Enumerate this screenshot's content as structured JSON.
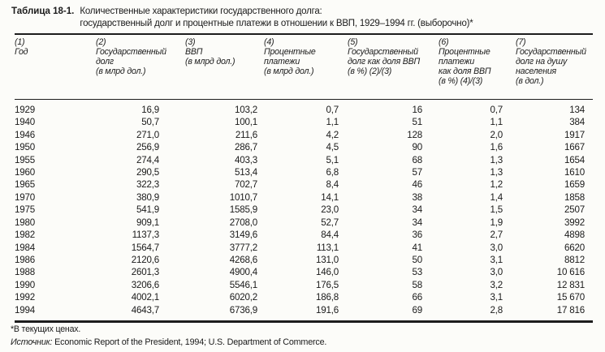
{
  "title": {
    "label": "Таблица 18-1.",
    "line1": "Количественные характеристики государственного долга:",
    "line2": "государственный долг и процентные платежи в отношении к ВВП, 1929–1994 гг. (выборочно)*"
  },
  "table": {
    "columns": [
      {
        "number": "(1)",
        "label": "Год"
      },
      {
        "number": "(2)",
        "label": "Государственный\nдолг\n(в млрд дол.)"
      },
      {
        "number": "(3)",
        "label": "ВВП\n(в млрд дол.)"
      },
      {
        "number": "(4)",
        "label": "Процентные\nплатежи\n(в млрд дол.)"
      },
      {
        "number": "(5)",
        "label": "Государственный\nдолг как доля ВВП\n(в %) (2)/(3)"
      },
      {
        "number": "(6)",
        "label": "Процентные\nплатежи\nкак доля ВВП\n(в %) (4)/(3)"
      },
      {
        "number": "(7)",
        "label": "Государственный\nдолг на душу\nнаселения\n(в дол.)"
      }
    ],
    "rows": [
      [
        "1929",
        "16,9",
        "103,2",
        "0,7",
        "16",
        "0,7",
        "134"
      ],
      [
        "1940",
        "50,7",
        "100,1",
        "1,1",
        "51",
        "1,1",
        "384"
      ],
      [
        "1946",
        "271,0",
        "211,6",
        "4,2",
        "128",
        "2,0",
        "1917"
      ],
      [
        "1950",
        "256,9",
        "286,7",
        "4,5",
        "90",
        "1,6",
        "1667"
      ],
      [
        "1955",
        "274,4",
        "403,3",
        "5,1",
        "68",
        "1,3",
        "1654"
      ],
      [
        "1960",
        "290,5",
        "513,4",
        "6,8",
        "57",
        "1,3",
        "1610"
      ],
      [
        "1965",
        "322,3",
        "702,7",
        "8,4",
        "46",
        "1,2",
        "1659"
      ],
      [
        "1970",
        "380,9",
        "1010,7",
        "14,1",
        "38",
        "1,4",
        "1858"
      ],
      [
        "1975",
        "541,9",
        "1585,9",
        "23,0",
        "34",
        "1,5",
        "2507"
      ],
      [
        "1980",
        "909,1",
        "2708,0",
        "52,7",
        "34",
        "1,9",
        "3992"
      ],
      [
        "1982",
        "1137,3",
        "3149,6",
        "84,4",
        "36",
        "2,7",
        "4898"
      ],
      [
        "1984",
        "1564,7",
        "3777,2",
        "113,1",
        "41",
        "3,0",
        "6620"
      ],
      [
        "1986",
        "2120,6",
        "4268,6",
        "131,0",
        "50",
        "3,1",
        "8812"
      ],
      [
        "1988",
        "2601,3",
        "4900,4",
        "146,0",
        "53",
        "3,0",
        "10 616"
      ],
      [
        "1990",
        "3206,6",
        "5546,1",
        "176,5",
        "58",
        "3,2",
        "12 831"
      ],
      [
        "1992",
        "4002,1",
        "6020,2",
        "186,8",
        "66",
        "3,1",
        "15 670"
      ],
      [
        "1994",
        "4643,7",
        "6736,9",
        "191,6",
        "69",
        "2,8",
        "17 816"
      ]
    ]
  },
  "footnotes": {
    "note": "*В текущих ценах.",
    "source_label": "Источник:",
    "source_text": " Economic Report of the President, 1994; U.S. Department of Commerce."
  },
  "colors": {
    "page_background": "#fcfcf9",
    "text": "#1b1b1b",
    "rule": "#1d1d1d"
  }
}
